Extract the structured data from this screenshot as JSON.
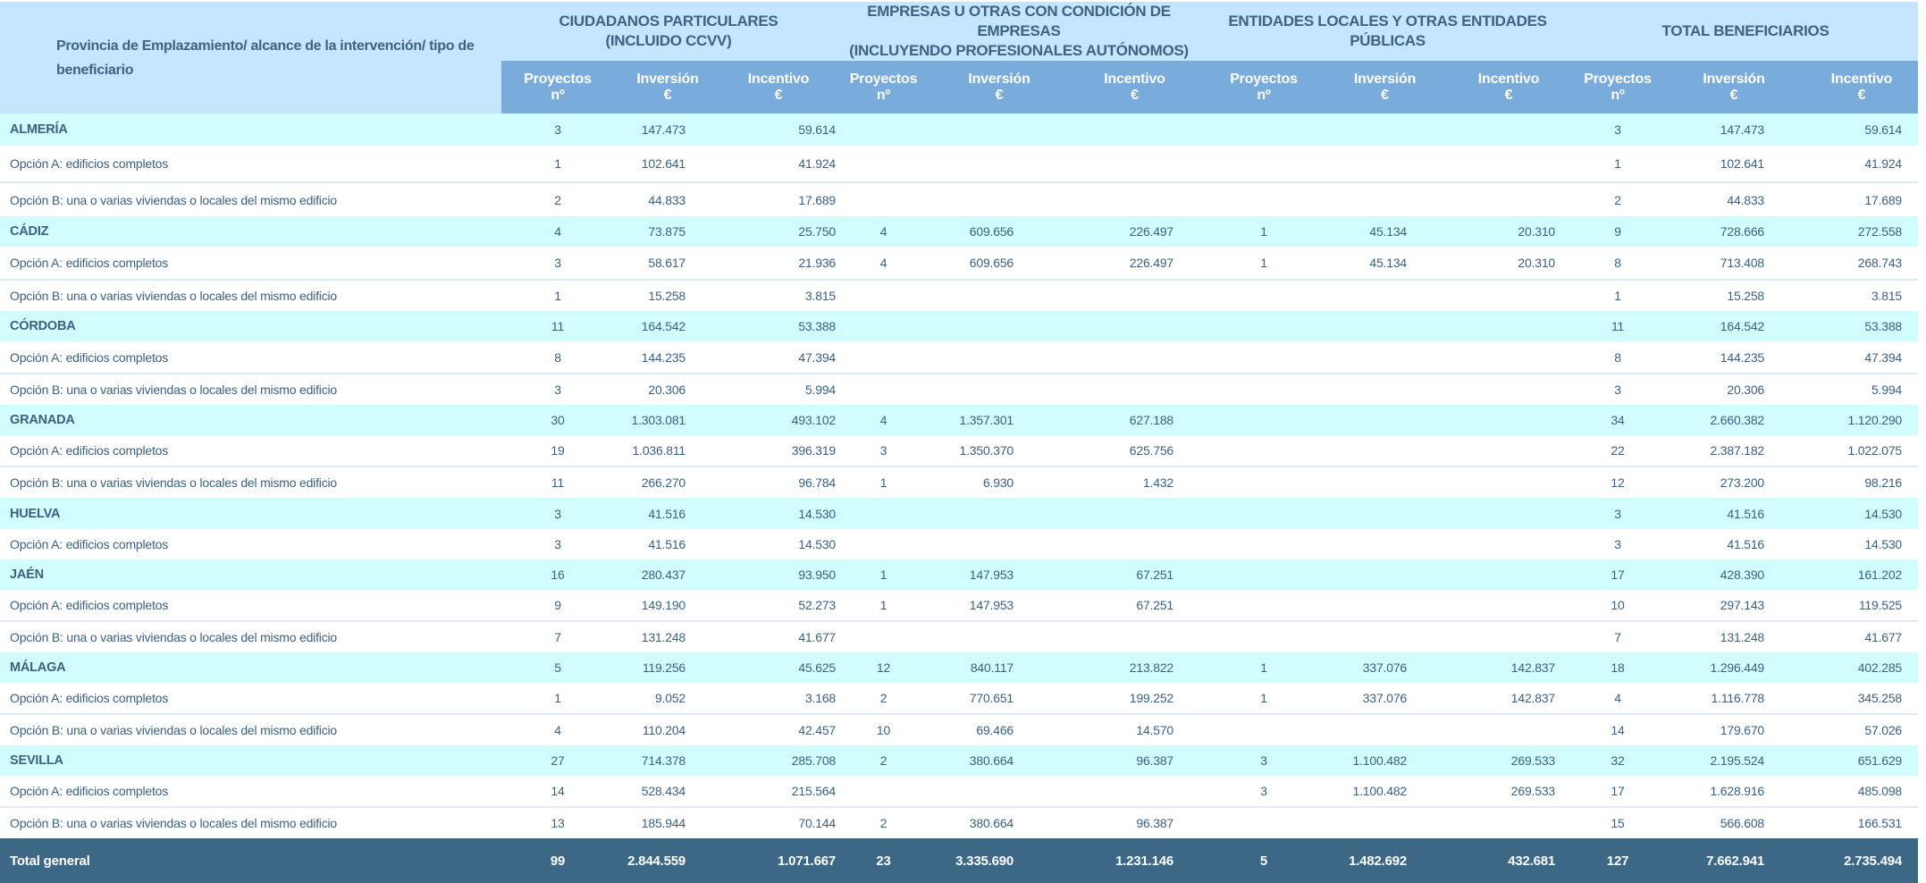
{
  "header": {
    "corner_label": "Provincia de Emplazamiento/ alcance de la intervención/ tipo de beneficiario",
    "groups": [
      {
        "line1": "CIUDADANOS PARTICULARES",
        "line2": "(INCLUIDO CCVV)"
      },
      {
        "line1": "EMPRESAS U OTRAS CON CONDICIÓN DE EMPRESAS",
        "line2": "(INCLUYENDO PROFESIONALES AUTÓNOMOS)"
      },
      {
        "line1": "ENTIDADES LOCALES Y OTRAS ENTIDADES",
        "line2": "PÚBLICAS"
      },
      {
        "line1": "TOTAL BENEFICIARIOS",
        "line2": ""
      }
    ],
    "subcolumns": [
      {
        "line1": "Proyectos",
        "line2": "nº"
      },
      {
        "line1": "Inversión",
        "line2": "€"
      },
      {
        "line1": "Incentivo",
        "line2": "€"
      }
    ]
  },
  "rows": [
    {
      "type": "prov",
      "label": "ALMERÍA",
      "values": [
        "3",
        "147.473",
        "59.614",
        "",
        "",
        "",
        "",
        "",
        "",
        "3",
        "147.473",
        "59.614"
      ]
    },
    {
      "type": "opt",
      "label": "Opción A: edificios completos",
      "values": [
        "1",
        "102.641",
        "41.924",
        "",
        "",
        "",
        "",
        "",
        "",
        "1",
        "102.641",
        "41.924"
      ]
    },
    {
      "type": "opt",
      "label": "Opción B: una o varias viviendas o locales del mismo edificio",
      "values": [
        "2",
        "44.833",
        "17.689",
        "",
        "",
        "",
        "",
        "",
        "",
        "2",
        "44.833",
        "17.689"
      ]
    },
    {
      "type": "prov",
      "label": "CÁDIZ",
      "values": [
        "4",
        "73.875",
        "25.750",
        "4",
        "609.656",
        "226.497",
        "1",
        "45.134",
        "20.310",
        "9",
        "728.666",
        "272.558"
      ]
    },
    {
      "type": "opt",
      "label": "Opción A: edificios completos",
      "values": [
        "3",
        "58.617",
        "21.936",
        "4",
        "609.656",
        "226.497",
        "1",
        "45.134",
        "20.310",
        "8",
        "713.408",
        "268.743"
      ]
    },
    {
      "type": "opt",
      "label": "Opción B: una o varias viviendas o locales del mismo edificio",
      "values": [
        "1",
        "15.258",
        "3.815",
        "",
        "",
        "",
        "",
        "",
        "",
        "1",
        "15.258",
        "3.815"
      ]
    },
    {
      "type": "prov",
      "label": "CÓRDOBA",
      "values": [
        "11",
        "164.542",
        "53.388",
        "",
        "",
        "",
        "",
        "",
        "",
        "11",
        "164.542",
        "53.388"
      ]
    },
    {
      "type": "opt",
      "label": "Opción A: edificios completos",
      "values": [
        "8",
        "144.235",
        "47.394",
        "",
        "",
        "",
        "",
        "",
        "",
        "8",
        "144.235",
        "47.394"
      ]
    },
    {
      "type": "opt",
      "label": "Opción B: una o varias viviendas o locales del mismo edificio",
      "values": [
        "3",
        "20.306",
        "5.994",
        "",
        "",
        "",
        "",
        "",
        "",
        "3",
        "20.306",
        "5.994"
      ]
    },
    {
      "type": "prov",
      "label": "GRANADA",
      "values": [
        "30",
        "1.303.081",
        "493.102",
        "4",
        "1.357.301",
        "627.188",
        "",
        "",
        "",
        "34",
        "2.660.382",
        "1.120.290"
      ]
    },
    {
      "type": "opt",
      "label": "Opción A: edificios completos",
      "values": [
        "19",
        "1.036.811",
        "396.319",
        "3",
        "1.350.370",
        "625.756",
        "",
        "",
        "",
        "22",
        "2.387.182",
        "1.022.075"
      ]
    },
    {
      "type": "opt",
      "label": "Opción B: una o varias viviendas o locales del mismo edificio",
      "values": [
        "11",
        "266.270",
        "96.784",
        "1",
        "6.930",
        "1.432",
        "",
        "",
        "",
        "12",
        "273.200",
        "98.216"
      ]
    },
    {
      "type": "prov",
      "label": "HUELVA",
      "values": [
        "3",
        "41.516",
        "14.530",
        "",
        "",
        "",
        "",
        "",
        "",
        "3",
        "41.516",
        "14.530"
      ]
    },
    {
      "type": "opt",
      "label": "Opción A: edificios completos",
      "values": [
        "3",
        "41.516",
        "14.530",
        "",
        "",
        "",
        "",
        "",
        "",
        "3",
        "41.516",
        "14.530"
      ]
    },
    {
      "type": "prov",
      "label": "JAÉN",
      "values": [
        "16",
        "280.437",
        "93.950",
        "1",
        "147.953",
        "67.251",
        "",
        "",
        "",
        "17",
        "428.390",
        "161.202"
      ]
    },
    {
      "type": "opt",
      "label": "Opción A: edificios completos",
      "values": [
        "9",
        "149.190",
        "52.273",
        "1",
        "147.953",
        "67.251",
        "",
        "",
        "",
        "10",
        "297.143",
        "119.525"
      ]
    },
    {
      "type": "opt",
      "label": "Opción B: una o varias viviendas o locales del mismo edificio",
      "values": [
        "7",
        "131.248",
        "41.677",
        "",
        "",
        "",
        "",
        "",
        "",
        "7",
        "131.248",
        "41.677"
      ]
    },
    {
      "type": "prov",
      "label": "MÁLAGA",
      "values": [
        "5",
        "119.256",
        "45.625",
        "12",
        "840.117",
        "213.822",
        "1",
        "337.076",
        "142.837",
        "18",
        "1.296.449",
        "402.285"
      ]
    },
    {
      "type": "opt",
      "label": "Opción A: edificios completos",
      "values": [
        "1",
        "9.052",
        "3.168",
        "2",
        "770.651",
        "199.252",
        "1",
        "337.076",
        "142.837",
        "4",
        "1.116.778",
        "345.258"
      ]
    },
    {
      "type": "opt",
      "label": "Opción B: una o varias viviendas o locales del mismo edificio",
      "values": [
        "4",
        "110.204",
        "42.457",
        "10",
        "69.466",
        "14.570",
        "",
        "",
        "",
        "14",
        "179.670",
        "57.026"
      ]
    },
    {
      "type": "prov",
      "label": "SEVILLA",
      "values": [
        "27",
        "714.378",
        "285.708",
        "2",
        "380.664",
        "96.387",
        "3",
        "1.100.482",
        "269.533",
        "32",
        "2.195.524",
        "651.629"
      ]
    },
    {
      "type": "opt",
      "label": "Opción A: edificios completos",
      "values": [
        "14",
        "528.434",
        "215.564",
        "",
        "",
        "",
        "3",
        "1.100.482",
        "269.533",
        "17",
        "1.628.916",
        "485.098"
      ]
    },
    {
      "type": "opt",
      "label": "Opción B: una o varias viviendas o locales del mismo edificio",
      "values": [
        "13",
        "185.944",
        "70.144",
        "2",
        "380.664",
        "96.387",
        "",
        "",
        "",
        "15",
        "566.608",
        "166.531"
      ]
    }
  ],
  "total": {
    "label": "Total general",
    "values": [
      "99",
      "2.844.559",
      "1.071.667",
      "23",
      "3.335.690",
      "1.231.146",
      "5",
      "1.482.692",
      "432.681",
      "127",
      "7.662.941",
      "2.735.494"
    ]
  },
  "colors": {
    "header_band": "#c4e5fb",
    "subheader": "#79acdb",
    "province_row": "#d1fdfe",
    "total_row": "#3d6885",
    "text": "#3b6182"
  }
}
